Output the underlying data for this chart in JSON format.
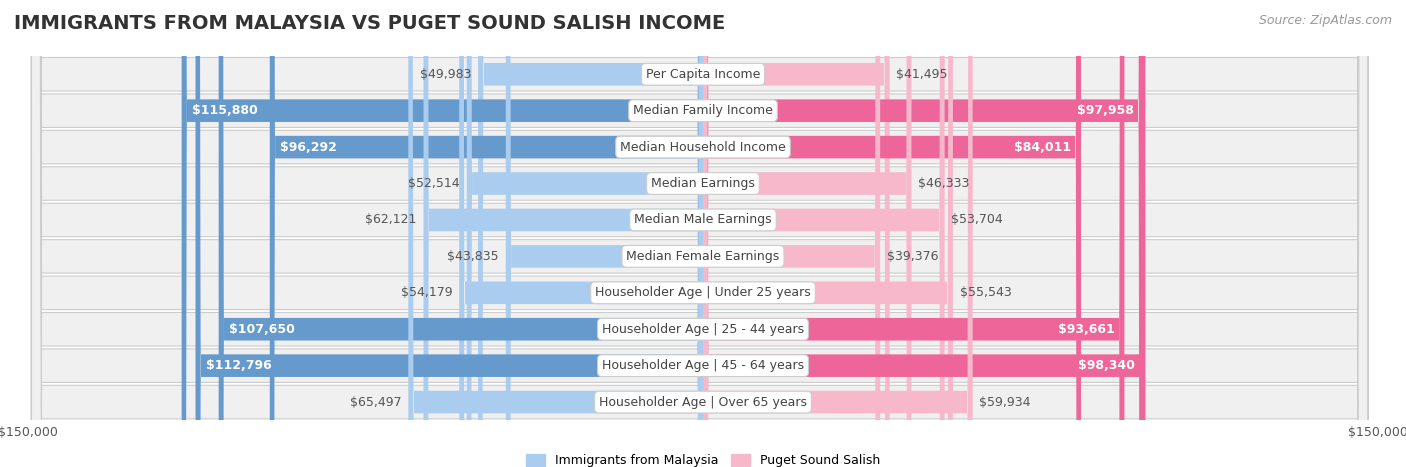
{
  "title": "IMMIGRANTS FROM MALAYSIA VS PUGET SOUND SALISH INCOME",
  "source": "Source: ZipAtlas.com",
  "categories": [
    "Per Capita Income",
    "Median Family Income",
    "Median Household Income",
    "Median Earnings",
    "Median Male Earnings",
    "Median Female Earnings",
    "Householder Age | Under 25 years",
    "Householder Age | 25 - 44 years",
    "Householder Age | 45 - 64 years",
    "Householder Age | Over 65 years"
  ],
  "malaysia_values": [
    49983,
    115880,
    96292,
    52514,
    62121,
    43835,
    54179,
    107650,
    112796,
    65497
  ],
  "salish_values": [
    41495,
    97958,
    84011,
    46333,
    53704,
    39376,
    55543,
    93661,
    98340,
    59934
  ],
  "malaysia_color_light": "#aaccee",
  "malaysia_color_dark": "#6699cc",
  "salish_color_light": "#f8b8cc",
  "salish_color_dark": "#ee6699",
  "bar_height": 0.62,
  "max_value": 150000,
  "background_color": "#ffffff",
  "row_bg_color": "#f0f0f0",
  "row_border_color": "#cccccc",
  "legend_malaysia": "Immigrants from Malaysia",
  "legend_salish": "Puget Sound Salish",
  "title_fontsize": 14,
  "source_fontsize": 9,
  "label_fontsize": 9,
  "category_fontsize": 9,
  "axis_fontsize": 9,
  "inner_label_threshold": 70000
}
